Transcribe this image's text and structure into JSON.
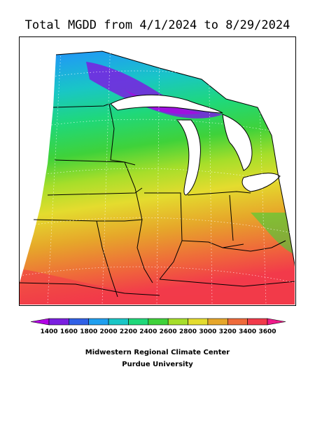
{
  "title": "Total MGDD from 4/1/2024 to 8/29/2024",
  "legend": {
    "ticks": [
      "1400",
      "1600",
      "1800",
      "2000",
      "2200",
      "2400",
      "2600",
      "2800",
      "3000",
      "3200",
      "3400",
      "3600"
    ],
    "colors": [
      "#b300e6",
      "#7a1fe0",
      "#3060e6",
      "#1f9fef",
      "#19c6c6",
      "#1fd87a",
      "#3fd23a",
      "#a6de2a",
      "#e4dc2e",
      "#e6a62a",
      "#ef6a3a",
      "#f23a4a",
      "#ef1a8a"
    ]
  },
  "credits": {
    "line1": "Midwestern Regional Climate Center",
    "line2": "Purdue University"
  }
}
